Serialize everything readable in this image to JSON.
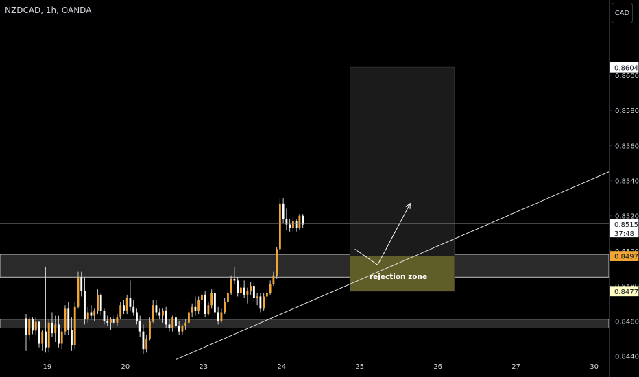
{
  "header": {
    "symbol_title": "NZDCAD, 1h, OANDA",
    "currency_button": "CAD"
  },
  "colors": {
    "background": "#000000",
    "candle_up": "#ffffff",
    "candle_down": "#f0a535",
    "wick": "#cfcfcf",
    "zone_fill": "#2a2a2a",
    "zone_border": "#bfbfbf",
    "target_box": "#1b1b1b",
    "stop_zone": "#6b6a2c",
    "trendline": "#e8e8e8",
    "last_price_label": "#ffffff",
    "orange_label": "#f0a535",
    "yellow_label": "#ffffc4"
  },
  "chart_data": {
    "type": "candlestick",
    "instrument": "NZDCAD",
    "timeframe": "1h",
    "broker": "OANDA",
    "x_ticks": [
      "19",
      "20",
      "23",
      "24",
      "25",
      "26",
      "27",
      "30"
    ],
    "x_tick_index": [
      6.5,
      30.5,
      54.5,
      78.5,
      102.5,
      126.5,
      150.5,
      174.5
    ],
    "y_ticks": [
      "0.84400",
      "0.84600",
      "0.84800",
      "0.85000",
      "0.85200",
      "0.85400",
      "0.85600",
      "0.85800",
      "0.86000"
    ],
    "y_tick_values": [
      0.844,
      0.846,
      0.848,
      0.85,
      0.852,
      0.854,
      0.856,
      0.858,
      0.86
    ],
    "ylim": [
      0.8439,
      0.8643
    ],
    "xlim": [
      -8,
      179
    ],
    "price_labels": {
      "top": {
        "text": "0.86046",
        "value": 0.86046
      },
      "last": {
        "text": "0.85153",
        "value": 0.85153,
        "countdown": "37:48"
      },
      "zone_top": {
        "text": "0.84970",
        "value": 0.8497
      },
      "zone_bottom": {
        "text": "0.84770",
        "value": 0.8477
      }
    },
    "zones": [
      {
        "low": 0.8485,
        "high": 0.8498
      },
      {
        "low": 0.8456,
        "high": 0.8461
      }
    ],
    "target_box": {
      "x0": 99.5,
      "x1": 131.5,
      "low": 0.8477,
      "high": 0.86046
    },
    "stop_zone": {
      "x0": 99.5,
      "x1": 131.5,
      "low": 0.8477,
      "high": 0.8497
    },
    "annotation": "rejection zone",
    "annotation_pos": {
      "x": 105.5,
      "y": 0.8484
    },
    "trendline": {
      "x0": 46,
      "y0": 0.8438,
      "x1": 179,
      "y1": 0.8545
    },
    "arrow_path": [
      [
        101,
        0.8501
      ],
      [
        108,
        0.8492
      ],
      [
        118,
        0.8527
      ]
    ],
    "candles": [
      {
        "o": 0.84615,
        "h": 0.8464,
        "l": 0.8443,
        "c": 0.8452
      },
      {
        "o": 0.8452,
        "h": 0.84625,
        "l": 0.8449,
        "c": 0.8461
      },
      {
        "o": 0.8461,
        "h": 0.8462,
        "l": 0.84525,
        "c": 0.84545
      },
      {
        "o": 0.84545,
        "h": 0.8462,
        "l": 0.8452,
        "c": 0.84595
      },
      {
        "o": 0.84595,
        "h": 0.846,
        "l": 0.8445,
        "c": 0.8447
      },
      {
        "o": 0.8447,
        "h": 0.8455,
        "l": 0.8443,
        "c": 0.8454
      },
      {
        "o": 0.8454,
        "h": 0.8491,
        "l": 0.8442,
        "c": 0.8445
      },
      {
        "o": 0.8445,
        "h": 0.8461,
        "l": 0.8442,
        "c": 0.8459
      },
      {
        "o": 0.8459,
        "h": 0.8465,
        "l": 0.8451,
        "c": 0.8453
      },
      {
        "o": 0.8453,
        "h": 0.8463,
        "l": 0.8448,
        "c": 0.8458
      },
      {
        "o": 0.8458,
        "h": 0.8463,
        "l": 0.8445,
        "c": 0.8447
      },
      {
        "o": 0.8447,
        "h": 0.8456,
        "l": 0.8444,
        "c": 0.8454
      },
      {
        "o": 0.8454,
        "h": 0.8469,
        "l": 0.8452,
        "c": 0.8467
      },
      {
        "o": 0.8467,
        "h": 0.8471,
        "l": 0.8452,
        "c": 0.8455
      },
      {
        "o": 0.8455,
        "h": 0.8462,
        "l": 0.8443,
        "c": 0.8446
      },
      {
        "o": 0.8446,
        "h": 0.8471,
        "l": 0.8444,
        "c": 0.8468
      },
      {
        "o": 0.8468,
        "h": 0.8488,
        "l": 0.8467,
        "c": 0.8485
      },
      {
        "o": 0.8485,
        "h": 0.8488,
        "l": 0.8474,
        "c": 0.8477
      },
      {
        "o": 0.8477,
        "h": 0.8485,
        "l": 0.8458,
        "c": 0.8461
      },
      {
        "o": 0.8461,
        "h": 0.8468,
        "l": 0.8459,
        "c": 0.8465
      },
      {
        "o": 0.8465,
        "h": 0.8469,
        "l": 0.8461,
        "c": 0.8463
      },
      {
        "o": 0.8463,
        "h": 0.8467,
        "l": 0.846,
        "c": 0.8466
      },
      {
        "o": 0.8466,
        "h": 0.8478,
        "l": 0.8464,
        "c": 0.8475
      },
      {
        "o": 0.8475,
        "h": 0.8476,
        "l": 0.8463,
        "c": 0.8466
      },
      {
        "o": 0.8466,
        "h": 0.8467,
        "l": 0.8458,
        "c": 0.846
      },
      {
        "o": 0.846,
        "h": 0.8463,
        "l": 0.8457,
        "c": 0.8459
      },
      {
        "o": 0.8459,
        "h": 0.8462,
        "l": 0.8455,
        "c": 0.8461
      },
      {
        "o": 0.8461,
        "h": 0.8463,
        "l": 0.8458,
        "c": 0.8459
      },
      {
        "o": 0.8459,
        "h": 0.8464,
        "l": 0.8457,
        "c": 0.8462
      },
      {
        "o": 0.8462,
        "h": 0.8471,
        "l": 0.8461,
        "c": 0.8469
      },
      {
        "o": 0.8469,
        "h": 0.8472,
        "l": 0.8464,
        "c": 0.8466
      },
      {
        "o": 0.8466,
        "h": 0.8475,
        "l": 0.8464,
        "c": 0.8473
      },
      {
        "o": 0.8473,
        "h": 0.8483,
        "l": 0.8466,
        "c": 0.8468
      },
      {
        "o": 0.8468,
        "h": 0.8472,
        "l": 0.8463,
        "c": 0.8465
      },
      {
        "o": 0.8465,
        "h": 0.8467,
        "l": 0.8458,
        "c": 0.846
      },
      {
        "o": 0.846,
        "h": 0.8463,
        "l": 0.8451,
        "c": 0.8454
      },
      {
        "o": 0.8454,
        "h": 0.8458,
        "l": 0.8441,
        "c": 0.8444
      },
      {
        "o": 0.8444,
        "h": 0.8452,
        "l": 0.8442,
        "c": 0.845
      },
      {
        "o": 0.845,
        "h": 0.8462,
        "l": 0.8449,
        "c": 0.846
      },
      {
        "o": 0.846,
        "h": 0.8472,
        "l": 0.8459,
        "c": 0.8469
      },
      {
        "o": 0.8469,
        "h": 0.8472,
        "l": 0.8463,
        "c": 0.8465
      },
      {
        "o": 0.8465,
        "h": 0.8467,
        "l": 0.8461,
        "c": 0.8463
      },
      {
        "o": 0.8463,
        "h": 0.8467,
        "l": 0.8459,
        "c": 0.8466
      },
      {
        "o": 0.8466,
        "h": 0.8468,
        "l": 0.8456,
        "c": 0.8458
      },
      {
        "o": 0.8458,
        "h": 0.8461,
        "l": 0.8454,
        "c": 0.8456
      },
      {
        "o": 0.8456,
        "h": 0.8463,
        "l": 0.8454,
        "c": 0.8462
      },
      {
        "o": 0.8462,
        "h": 0.8465,
        "l": 0.8455,
        "c": 0.8457
      },
      {
        "o": 0.8457,
        "h": 0.846,
        "l": 0.8452,
        "c": 0.8454
      },
      {
        "o": 0.8454,
        "h": 0.8458,
        "l": 0.8452,
        "c": 0.8457
      },
      {
        "o": 0.8457,
        "h": 0.8461,
        "l": 0.8455,
        "c": 0.8459
      },
      {
        "o": 0.8459,
        "h": 0.8467,
        "l": 0.8458,
        "c": 0.8465
      },
      {
        "o": 0.8465,
        "h": 0.847,
        "l": 0.8462,
        "c": 0.8468
      },
      {
        "o": 0.8468,
        "h": 0.8474,
        "l": 0.8463,
        "c": 0.8466
      },
      {
        "o": 0.8466,
        "h": 0.8474,
        "l": 0.8464,
        "c": 0.8472
      },
      {
        "o": 0.8472,
        "h": 0.8477,
        "l": 0.847,
        "c": 0.8475
      },
      {
        "o": 0.8475,
        "h": 0.8477,
        "l": 0.8462,
        "c": 0.8464
      },
      {
        "o": 0.8464,
        "h": 0.8471,
        "l": 0.8463,
        "c": 0.8469
      },
      {
        "o": 0.8469,
        "h": 0.8478,
        "l": 0.8467,
        "c": 0.8476
      },
      {
        "o": 0.8476,
        "h": 0.8478,
        "l": 0.8463,
        "c": 0.8465
      },
      {
        "o": 0.8465,
        "h": 0.8468,
        "l": 0.8458,
        "c": 0.846
      },
      {
        "o": 0.846,
        "h": 0.8467,
        "l": 0.8459,
        "c": 0.8465
      },
      {
        "o": 0.8465,
        "h": 0.8473,
        "l": 0.8464,
        "c": 0.8471
      },
      {
        "o": 0.8471,
        "h": 0.8478,
        "l": 0.847,
        "c": 0.8476
      },
      {
        "o": 0.8476,
        "h": 0.8486,
        "l": 0.8475,
        "c": 0.8484
      },
      {
        "o": 0.8484,
        "h": 0.8491,
        "l": 0.8481,
        "c": 0.8483
      },
      {
        "o": 0.8483,
        "h": 0.8485,
        "l": 0.8474,
        "c": 0.8476
      },
      {
        "o": 0.8476,
        "h": 0.8481,
        "l": 0.8474,
        "c": 0.8479
      },
      {
        "o": 0.8479,
        "h": 0.8483,
        "l": 0.8473,
        "c": 0.8475
      },
      {
        "o": 0.8475,
        "h": 0.8479,
        "l": 0.847,
        "c": 0.8477
      },
      {
        "o": 0.8477,
        "h": 0.8482,
        "l": 0.8475,
        "c": 0.848
      },
      {
        "o": 0.848,
        "h": 0.8482,
        "l": 0.8471,
        "c": 0.8473
      },
      {
        "o": 0.8473,
        "h": 0.8476,
        "l": 0.8469,
        "c": 0.8474
      },
      {
        "o": 0.8474,
        "h": 0.8476,
        "l": 0.8465,
        "c": 0.8467
      },
      {
        "o": 0.8467,
        "h": 0.8476,
        "l": 0.8466,
        "c": 0.8474
      },
      {
        "o": 0.8474,
        "h": 0.8478,
        "l": 0.8472,
        "c": 0.8476
      },
      {
        "o": 0.8476,
        "h": 0.8483,
        "l": 0.8475,
        "c": 0.8481
      },
      {
        "o": 0.8481,
        "h": 0.8488,
        "l": 0.848,
        "c": 0.8486
      },
      {
        "o": 0.8486,
        "h": 0.8502,
        "l": 0.8484,
        "c": 0.8501
      },
      {
        "o": 0.8501,
        "h": 0.853,
        "l": 0.8499,
        "c": 0.8527
      },
      {
        "o": 0.8527,
        "h": 0.853,
        "l": 0.8516,
        "c": 0.8518
      },
      {
        "o": 0.8518,
        "h": 0.8524,
        "l": 0.8512,
        "c": 0.8515
      },
      {
        "o": 0.8515,
        "h": 0.8518,
        "l": 0.8511,
        "c": 0.8513
      },
      {
        "o": 0.8513,
        "h": 0.8519,
        "l": 0.8511,
        "c": 0.8517
      },
      {
        "o": 0.8517,
        "h": 0.8518,
        "l": 0.8511,
        "c": 0.8513
      },
      {
        "o": 0.8513,
        "h": 0.8521,
        "l": 0.8512,
        "c": 0.852
      },
      {
        "o": 0.852,
        "h": 0.8521,
        "l": 0.8513,
        "c": 0.8515
      }
    ]
  }
}
